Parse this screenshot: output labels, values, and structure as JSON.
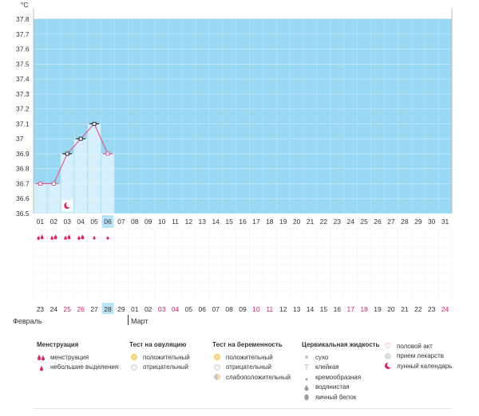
{
  "chart_data": {
    "type": "line",
    "unit": "°C",
    "ylim": [
      36.5,
      37.8
    ],
    "y_ticks": [
      "37.8",
      "37.7",
      "37.6",
      "37.5",
      "37.4",
      "37.3",
      "37.2",
      "37.1",
      "37",
      "36.9",
      "36.8",
      "36.7",
      "36.6",
      "36.5"
    ],
    "cycle_days": [
      "01",
      "02",
      "03",
      "04",
      "05",
      "06",
      "07",
      "08",
      "09",
      "10",
      "11",
      "12",
      "13",
      "14",
      "15",
      "16",
      "17",
      "18",
      "19",
      "20",
      "21",
      "22",
      "23",
      "24",
      "25",
      "26",
      "27",
      "28",
      "29",
      "30",
      "31"
    ],
    "current_day": "06",
    "temperature": [
      {
        "day": "01",
        "value": 36.7
      },
      {
        "day": "02",
        "value": 36.7
      },
      {
        "day": "03",
        "value": 36.9
      },
      {
        "day": "04",
        "value": 37.0
      },
      {
        "day": "05",
        "value": 37.1
      },
      {
        "day": "06",
        "value": 36.9
      }
    ],
    "menstruation_days": [
      "01",
      "02",
      "03",
      "04"
    ],
    "spotting_days": [
      "05",
      "06"
    ],
    "moon_day": "03",
    "calendar_dates": [
      {
        "d": "23",
        "red": false
      },
      {
        "d": "24",
        "red": false
      },
      {
        "d": "25",
        "red": true
      },
      {
        "d": "26",
        "red": true
      },
      {
        "d": "27",
        "red": false
      },
      {
        "d": "28",
        "red": false,
        "today": true
      },
      {
        "d": "29",
        "red": false
      },
      {
        "d": "01",
        "red": false
      },
      {
        "d": "02",
        "red": false
      },
      {
        "d": "03",
        "red": true
      },
      {
        "d": "04",
        "red": true
      },
      {
        "d": "05",
        "red": false
      },
      {
        "d": "06",
        "red": false
      },
      {
        "d": "07",
        "red": false
      },
      {
        "d": "08",
        "red": false
      },
      {
        "d": "09",
        "red": false
      },
      {
        "d": "10",
        "red": true
      },
      {
        "d": "11",
        "red": true
      },
      {
        "d": "12",
        "red": false
      },
      {
        "d": "13",
        "red": false
      },
      {
        "d": "14",
        "red": false
      },
      {
        "d": "15",
        "red": false
      },
      {
        "d": "16",
        "red": false
      },
      {
        "d": "17",
        "red": true
      },
      {
        "d": "18",
        "red": true
      },
      {
        "d": "19",
        "red": false
      },
      {
        "d": "20",
        "red": false
      },
      {
        "d": "21",
        "red": false
      },
      {
        "d": "22",
        "red": false
      },
      {
        "d": "23",
        "red": false
      },
      {
        "d": "24",
        "red": true
      }
    ],
    "months": {
      "first": "Февраль",
      "second": "Март"
    },
    "colors": {
      "plot_bg": "#99d8f2",
      "bar": "#d5effb",
      "line": "#e05a8e",
      "today": "#b8e3f6",
      "red": "#e0245e"
    }
  },
  "legend": {
    "menstruation": {
      "title": "Менструация",
      "items": [
        "менструация",
        "небольшие выделения"
      ]
    },
    "ovulation": {
      "title": "Тест на овуляцию",
      "items": [
        "положительный",
        "отрицательный"
      ]
    },
    "pregnancy": {
      "title": "Тест на беременность",
      "items": [
        "положительный",
        "отрицательный",
        "слабоположительный"
      ]
    },
    "cervical": {
      "title": "Цервикальная жидкость",
      "items": [
        "сухо",
        "клейкая",
        "кремообразная",
        "водянистая",
        "яичный белок"
      ]
    },
    "other": {
      "items": [
        "половой акт",
        "прием лекарств",
        "лунный календарь"
      ]
    }
  }
}
